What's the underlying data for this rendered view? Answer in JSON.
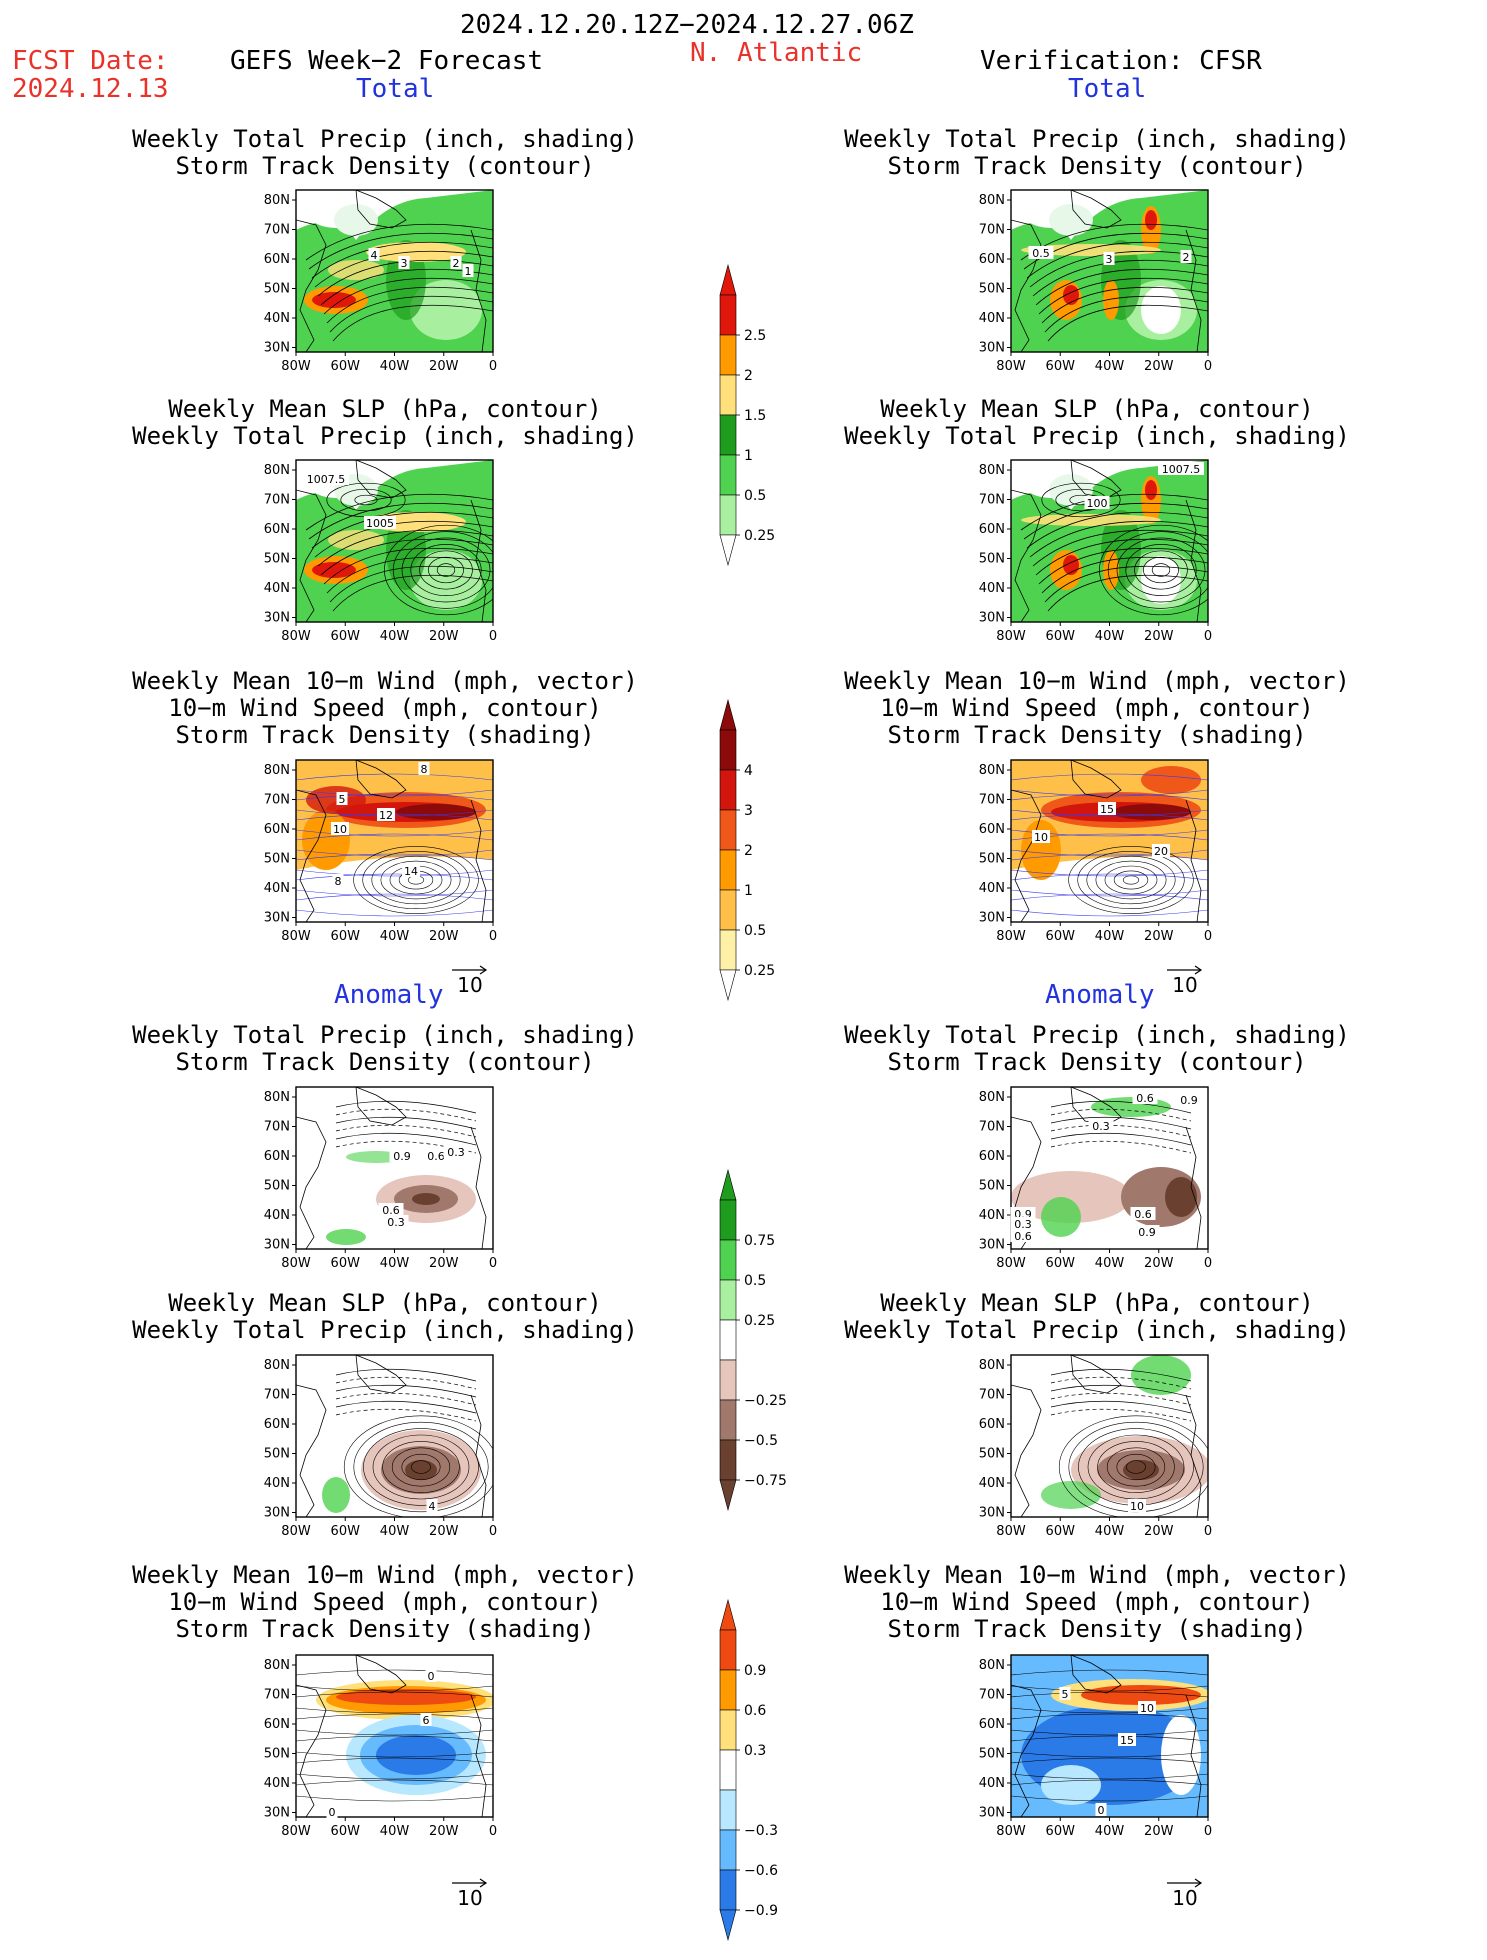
{
  "header": {
    "time_range": "2024.12.20.12Z−2024.12.27.06Z",
    "fcst_label": "FCST Date:",
    "fcst_date": "2024.12.13",
    "left_title": "GEFS Week−2 Forecast",
    "region": "N. Atlantic",
    "right_title": "Verification: CFSR"
  },
  "sections": {
    "total": "Total",
    "anomaly": "Anomaly"
  },
  "titles": {
    "precip_track": [
      "Weekly Total Precip (inch, shading)",
      "Storm Track Density (contour)"
    ],
    "slp_precip": [
      "Weekly Mean SLP (hPa, contour)",
      "Weekly Total Precip (inch, shading)"
    ],
    "wind_track": [
      "Weekly Mean 10−m Wind (mph, vector)",
      "10−m Wind Speed (mph, contour)",
      "Storm Track Density (shading)"
    ]
  },
  "axes": {
    "lat": [
      "80N",
      "70N",
      "60N",
      "50N",
      "40N",
      "30N"
    ],
    "lon": [
      "80W",
      "60W",
      "40W",
      "20W",
      "0"
    ]
  },
  "vector_ref": "10",
  "colorbars": {
    "precip_total": {
      "labels": [
        "2.5",
        "2",
        "1.5",
        "1",
        "0.5",
        "0.25"
      ],
      "colors": [
        "#e0180c",
        "#ff9a00",
        "#ffe07a",
        "#1e9c1e",
        "#4fd24f",
        "#a8f0a0"
      ]
    },
    "track_total": {
      "labels": [
        "4",
        "3",
        "2",
        "1",
        "0.5",
        "0.25"
      ],
      "colors": [
        "#8c0a0a",
        "#d2160e",
        "#f0581a",
        "#ff9a00",
        "#ffc04a",
        "#fff0a8"
      ]
    },
    "precip_anom": {
      "labels": [
        "0.75",
        "0.5",
        "0.25",
        "−0.25",
        "−0.5",
        "−0.75"
      ],
      "colors": [
        "#1e9c1e",
        "#4fd24f",
        "#a8f0a0",
        "#ffffff",
        "#e6c6bc",
        "#a0786c",
        "#6a4030"
      ]
    },
    "track_anom": {
      "labels": [
        "0.9",
        "0.6",
        "0.3",
        "−0.3",
        "−0.6",
        "−0.9"
      ],
      "colors": [
        "#ee4a12",
        "#ff9a00",
        "#ffe07a",
        "#ffffff",
        "#b8e8ff",
        "#66bbff",
        "#2a7ae8"
      ]
    }
  },
  "contour_labels": {
    "f_total_precip": [
      "4",
      "3",
      "2",
      "1"
    ],
    "v_total_precip": [
      "0.5",
      "3",
      "2"
    ],
    "f_total_slp": [
      "1007.5",
      "1005"
    ],
    "v_total_slp": [
      "1007.5",
      "100"
    ],
    "f_total_wind": [
      "8",
      "5",
      "12",
      "10",
      "14",
      "8"
    ],
    "v_total_wind": [
      "15",
      "10",
      "20"
    ],
    "f_anom_precip": [
      "0.9",
      "0.6",
      "0.3",
      "0.6",
      "0.3"
    ],
    "v_anom_precip": [
      "0.6",
      "0.9",
      "0.3",
      "0.9",
      "0.6",
      "0.3",
      "0.9",
      "0.6"
    ],
    "f_anom_slp": [
      "4"
    ],
    "v_anom_slp": [
      "10"
    ],
    "f_anom_wind": [
      "0",
      "6",
      "0"
    ],
    "v_anom_wind": [
      "5",
      "10",
      "15",
      "0"
    ]
  }
}
